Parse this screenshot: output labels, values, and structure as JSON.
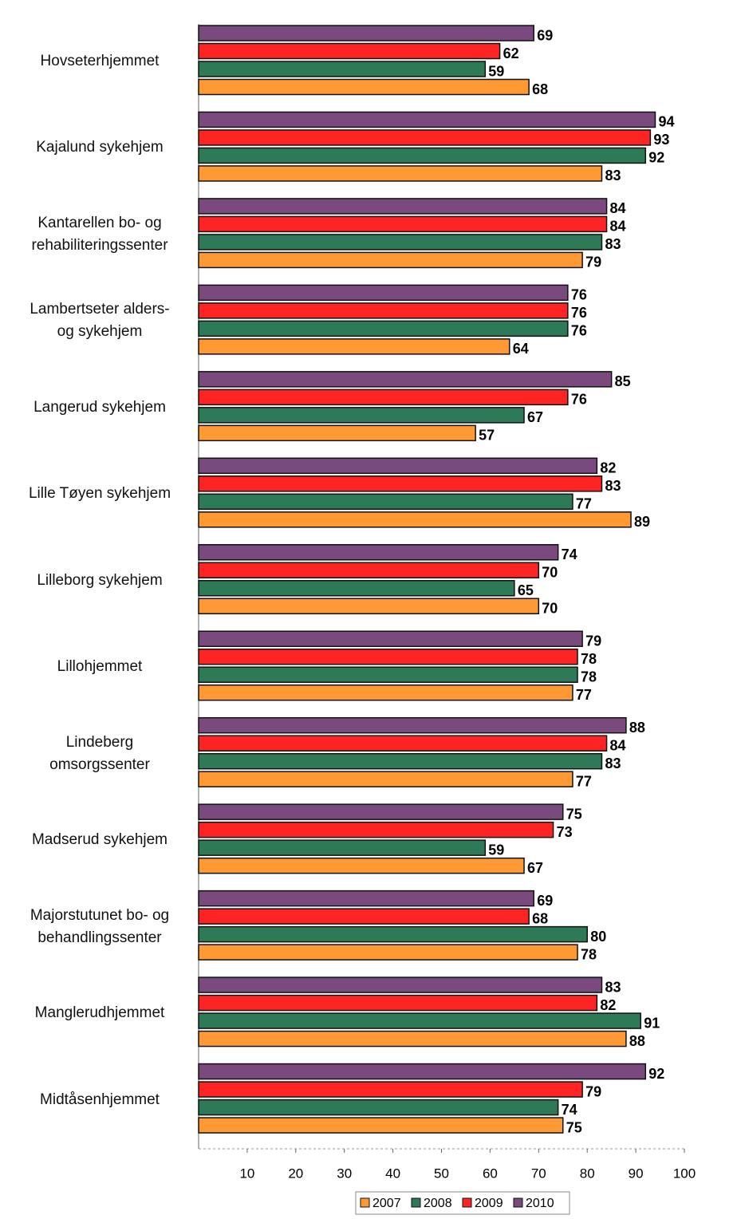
{
  "chart_data": {
    "type": "barh",
    "categories": [
      "Hovseterhjemmet",
      "Kajalund sykehjem",
      "Kantarellen bo- og\nrehabiliteringssenter",
      "Lambertseter alders-\nog sykehjem",
      "Langerud sykehjem",
      "Lille Tøyen sykehjem",
      "Lilleborg sykehjem",
      "Lillohjemmet",
      "Lindeberg\nomsorgssenter",
      "Madserud sykehjem",
      "Majorstutunet bo- og\nbehandlingssenter",
      "Manglerudhjemmet",
      "Midtåsenhjemmet"
    ],
    "series": [
      {
        "name": "2007",
        "color": "#ff9933",
        "values": [
          68,
          83,
          79,
          64,
          57,
          89,
          70,
          77,
          77,
          67,
          78,
          88,
          75
        ]
      },
      {
        "name": "2008",
        "color": "#2f7a56",
        "values": [
          59,
          92,
          83,
          76,
          67,
          77,
          65,
          78,
          83,
          59,
          80,
          91,
          74
        ]
      },
      {
        "name": "2009",
        "color": "#ff2424",
        "values": [
          62,
          93,
          84,
          76,
          76,
          83,
          70,
          78,
          84,
          73,
          68,
          82,
          79
        ]
      },
      {
        "name": "2010",
        "color": "#7a4a7e",
        "values": [
          69,
          94,
          84,
          76,
          85,
          82,
          74,
          79,
          88,
          75,
          69,
          83,
          92
        ]
      }
    ],
    "xlim": [
      0,
      100
    ],
    "xticks": [
      10,
      20,
      30,
      40,
      50,
      60,
      70,
      80,
      90,
      100
    ],
    "legend": "bottom"
  }
}
